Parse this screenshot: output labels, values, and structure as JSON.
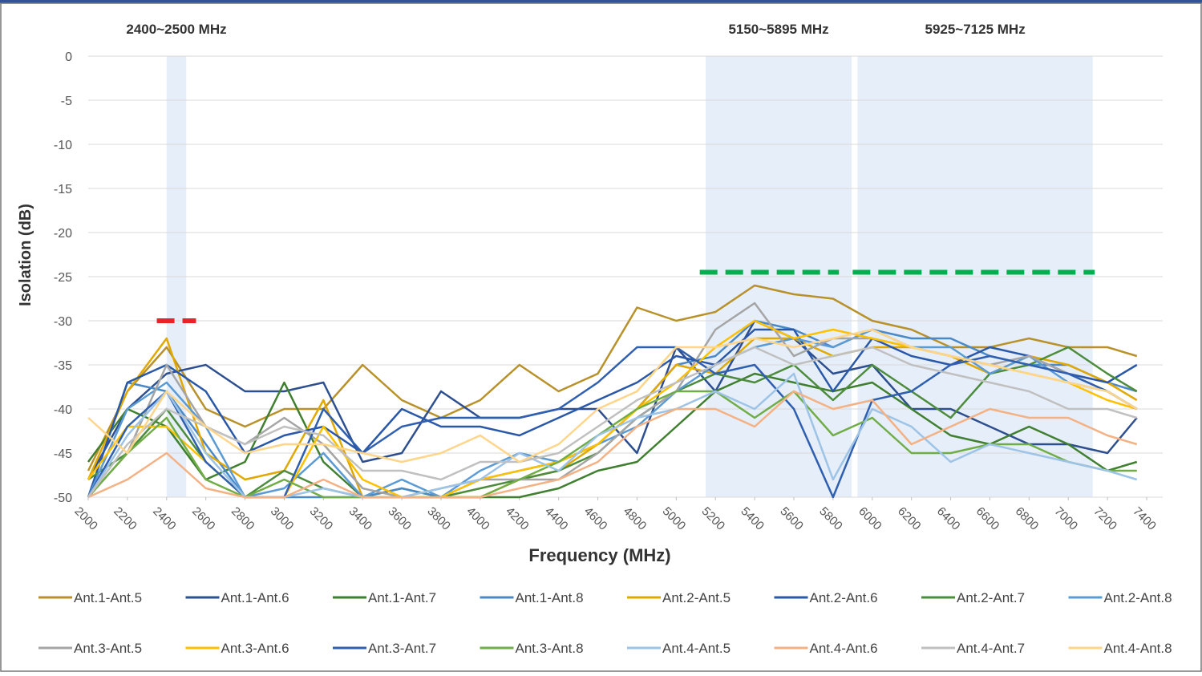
{
  "chart_data": {
    "type": "line",
    "ylabel": "Isolation (dB)",
    "xlabel": "Frequency (MHz)",
    "xlim": [
      2000,
      7400
    ],
    "ylim": [
      -50,
      0
    ],
    "xticks": [
      2000,
      2200,
      2400,
      2600,
      2800,
      3000,
      3200,
      3400,
      3600,
      3800,
      4000,
      4200,
      4400,
      4600,
      4800,
      5000,
      5200,
      5400,
      5600,
      5800,
      6000,
      6200,
      6400,
      6600,
      6800,
      7000,
      7200,
      7400
    ],
    "yticks": [
      0,
      -5,
      -10,
      -15,
      -20,
      -25,
      -30,
      -35,
      -40,
      -45,
      -50
    ],
    "grid": true,
    "legend": "bottom",
    "bands": [
      {
        "label": "2400~2500 MHz",
        "x": [
          2400,
          2500
        ],
        "color": "#e6eef9"
      },
      {
        "label": "5150~5895 MHz",
        "x": [
          5150,
          5895
        ],
        "color": "#e6eef9"
      },
      {
        "label": "5925~7125 MHz",
        "x": [
          5925,
          7125
        ],
        "color": "#e6eef9"
      }
    ],
    "reference_lines": [
      {
        "value": -30,
        "x": [
          2350,
          2550
        ],
        "color": "#e8242a"
      },
      {
        "value": -24.5,
        "x": [
          5120,
          5830
        ],
        "color": "#00b050"
      },
      {
        "value": -24.5,
        "x": [
          5900,
          7135
        ],
        "color": "#00b050"
      }
    ],
    "x": [
      2000,
      2200,
      2400,
      2600,
      2800,
      3000,
      3200,
      3400,
      3600,
      3800,
      4000,
      4200,
      4400,
      4600,
      4800,
      5000,
      5200,
      5400,
      5600,
      5800,
      6000,
      6200,
      6400,
      6600,
      6800,
      7000,
      7200,
      7350
    ],
    "series": [
      {
        "name": "Ant.1-Ant.5",
        "color": "#b8912a",
        "values": [
          -47,
          -38,
          -33,
          -40,
          -42,
          -40,
          -40,
          -35,
          -39,
          -41,
          -39,
          -35,
          -38,
          -36,
          -28.5,
          -30,
          -29,
          -26,
          -27,
          -27.5,
          -30,
          -31,
          -33,
          -33,
          -32,
          -33,
          -33,
          -34
        ]
      },
      {
        "name": "Ant.1-Ant.6",
        "color": "#2e4f8f",
        "values": [
          -48,
          -40,
          -36,
          -35,
          -38,
          -38,
          -37,
          -46,
          -45,
          -38,
          -41,
          -41,
          -40,
          -40,
          -45,
          -33,
          -38,
          -30,
          -32,
          -36,
          -35,
          -40,
          -40,
          -42,
          -44,
          -44,
          -45,
          -41
        ]
      },
      {
        "name": "Ant.1-Ant.7",
        "color": "#3f7f2f",
        "values": [
          -46,
          -40,
          -42,
          -48,
          -46,
          -37,
          -46,
          -50,
          -49,
          -50,
          -50,
          -50,
          -49,
          -47,
          -46,
          -42,
          -38,
          -36,
          -37,
          -38,
          -37,
          -40,
          -43,
          -44,
          -42,
          -44,
          -47,
          -46
        ]
      },
      {
        "name": "Ant.1-Ant.8",
        "color": "#4a89c8",
        "values": [
          -50,
          -37,
          -38,
          -44,
          -50,
          -50,
          -50,
          -50,
          -49,
          -50,
          -48,
          -47,
          -46,
          -44,
          -40,
          -35,
          -34,
          -30,
          -31,
          -33,
          -31,
          -32,
          -32,
          -34,
          -35,
          -35,
          -37,
          -38
        ]
      },
      {
        "name": "Ant.2-Ant.5",
        "color": "#e0a800",
        "values": [
          -48,
          -38,
          -32,
          -45,
          -48,
          -47,
          -39,
          -50,
          -50,
          -50,
          -50,
          -48,
          -47,
          -44,
          -40,
          -35,
          -36,
          -32,
          -32,
          -34,
          -33,
          -33,
          -34,
          -36,
          -34,
          -35,
          -37,
          -39
        ]
      },
      {
        "name": "Ant.2-Ant.6",
        "color": "#2a58a8",
        "values": [
          -50,
          -37,
          -35,
          -38,
          -45,
          -43,
          -42,
          -45,
          -40,
          -42,
          -42,
          -43,
          -41,
          -39,
          -37,
          -34,
          -35,
          -31,
          -31,
          -38,
          -32,
          -34,
          -35,
          -33,
          -34,
          -36,
          -37,
          -35
        ]
      },
      {
        "name": "Ant.2-Ant.7",
        "color": "#4c8c3c",
        "values": [
          -48,
          -45,
          -40,
          -46,
          -50,
          -47,
          -49,
          -50,
          -50,
          -50,
          -49,
          -48,
          -47,
          -45,
          -41,
          -38,
          -36,
          -37,
          -35,
          -39,
          -35,
          -38,
          -41,
          -36,
          -35,
          -33,
          -36,
          -38
        ]
      },
      {
        "name": "Ant.2-Ant.8",
        "color": "#5b9bd5",
        "values": [
          -50,
          -40,
          -37,
          -42,
          -50,
          -49,
          -45,
          -50,
          -48,
          -50,
          -47,
          -45,
          -46,
          -44,
          -42,
          -38,
          -35,
          -33,
          -32,
          -33,
          -31,
          -33,
          -33,
          -36,
          -34,
          -37,
          -38,
          -40
        ]
      },
      {
        "name": "Ant.3-Ant.5",
        "color": "#a5a5a5",
        "values": [
          -50,
          -45,
          -35,
          -42,
          -44,
          -41,
          -44,
          -49,
          -50,
          -49,
          -48,
          -48,
          -48,
          -45,
          -41,
          -38,
          -31,
          -28,
          -34,
          -32,
          -32,
          -33,
          -34,
          -35,
          -34,
          -36,
          -38,
          -40
        ]
      },
      {
        "name": "Ant.3-Ant.6",
        "color": "#ffc000",
        "values": [
          -48,
          -42,
          -42,
          -46,
          -50,
          -50,
          -42,
          -48,
          -50,
          -50,
          -48,
          -47,
          -46,
          -44,
          -40,
          -37,
          -33,
          -30,
          -32,
          -31,
          -32,
          -33,
          -34,
          -35,
          -36,
          -37,
          -39,
          -40
        ]
      },
      {
        "name": "Ant.3-Ant.7",
        "color": "#2f5fb0",
        "values": [
          -50,
          -42,
          -38,
          -46,
          -50,
          -50,
          -40,
          -45,
          -42,
          -41,
          -41,
          -41,
          -40,
          -37,
          -33,
          -33,
          -36,
          -35,
          -40,
          -50,
          -39,
          -38,
          -35,
          -34,
          -35,
          -36,
          -38,
          -40
        ]
      },
      {
        "name": "Ant.3-Ant.8",
        "color": "#70ad47",
        "values": [
          -50,
          -45,
          -41,
          -48,
          -50,
          -48,
          -50,
          -50,
          -50,
          -50,
          -50,
          -48,
          -46,
          -43,
          -40,
          -38,
          -38,
          -41,
          -38,
          -43,
          -41,
          -45,
          -45,
          -44,
          -44,
          -46,
          -47,
          -47
        ]
      },
      {
        "name": "Ant.4-Ant.5",
        "color": "#9dc3e6",
        "values": [
          -50,
          -43,
          -38,
          -45,
          -50,
          -50,
          -49,
          -50,
          -50,
          -49,
          -48,
          -45,
          -47,
          -43,
          -41,
          -40,
          -38,
          -40,
          -36,
          -48,
          -40,
          -42,
          -46,
          -44,
          -45,
          -46,
          -47,
          -48
        ]
      },
      {
        "name": "Ant.4-Ant.6",
        "color": "#f4b183",
        "values": [
          -50,
          -48,
          -45,
          -49,
          -50,
          -50,
          -48,
          -50,
          -50,
          -50,
          -50,
          -49,
          -48,
          -46,
          -42,
          -40,
          -40,
          -42,
          -38,
          -40,
          -39,
          -44,
          -42,
          -40,
          -41,
          -41,
          -43,
          -44
        ]
      },
      {
        "name": "Ant.4-Ant.7",
        "color": "#c0c0c0",
        "values": [
          -50,
          -44,
          -40,
          -42,
          -44,
          -42,
          -43,
          -47,
          -47,
          -48,
          -46,
          -46,
          -45,
          -42,
          -39,
          -37,
          -35,
          -33,
          -35,
          -34,
          -33,
          -35,
          -36,
          -37,
          -38,
          -40,
          -40,
          -41
        ]
      },
      {
        "name": "Ant.4-Ant.8",
        "color": "#ffd58a",
        "values": [
          -41,
          -45,
          -38,
          -42,
          -45,
          -44,
          -44,
          -45,
          -46,
          -45,
          -43,
          -46,
          -44,
          -40,
          -38,
          -33,
          -33,
          -32,
          -33,
          -32,
          -31,
          -33,
          -34,
          -35,
          -36,
          -37,
          -38,
          -40
        ]
      }
    ]
  }
}
